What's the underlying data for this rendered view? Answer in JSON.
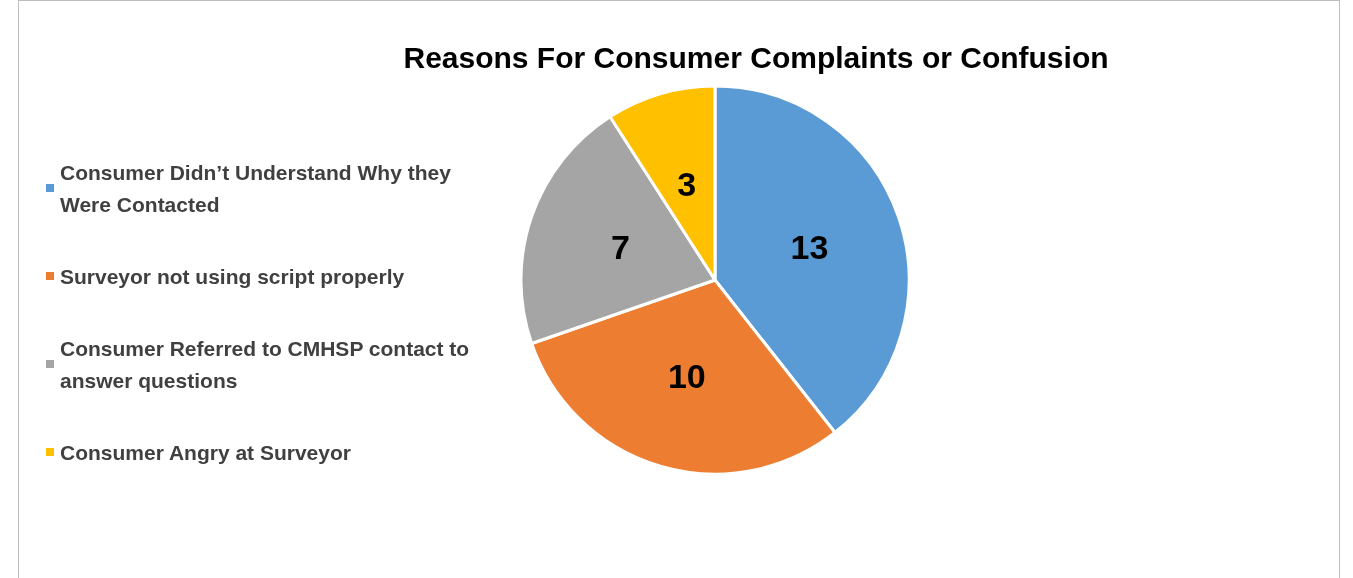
{
  "chart_data": {
    "type": "pie",
    "title": "Reasons For Consumer Complaints or Confusion",
    "categories": [
      "Consumer Didn’t Understand Why they Were Contacted",
      "Surveyor not using script properly",
      "Consumer Referred to CMHSP contact to answer questions",
      "Consumer Angry at Surveyor"
    ],
    "values": [
      13,
      10,
      7,
      3
    ],
    "colors": [
      "#5b9bd5",
      "#ed7d31",
      "#a5a5a5",
      "#ffc000"
    ],
    "data_labels": true,
    "legend": "left"
  }
}
